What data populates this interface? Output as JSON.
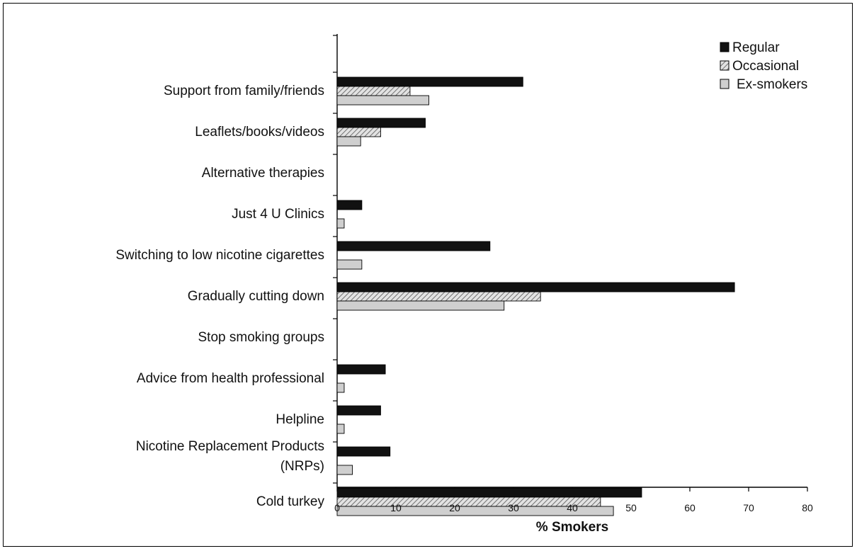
{
  "chart_data": {
    "type": "bar",
    "orientation": "horizontal",
    "title": "",
    "xlabel": "% Smokers",
    "ylabel": "",
    "xlim": [
      0,
      80
    ],
    "xticks": [
      0,
      10,
      20,
      30,
      40,
      50,
      60,
      70,
      80
    ],
    "grid": false,
    "legend_position": "top-right",
    "categories": [
      "Support from family/friends",
      "Leaflets/books/videos",
      "Alternative therapies",
      "Just 4 U Clinics",
      "Switching to low nicotine cigarettes",
      "Gradually cutting down",
      "Stop smoking groups",
      "Advice from health professional",
      "Helpline",
      "Nicotine Replacement Products (NRPs)",
      "Cold turkey"
    ],
    "series": [
      {
        "name": "Regular",
        "color": "#111111",
        "pattern": "solid",
        "values": [
          31.6,
          15.0,
          0,
          4.2,
          26.0,
          67.6,
          0,
          8.2,
          7.4,
          9.0,
          51.8
        ]
      },
      {
        "name": "Occasional",
        "color": "#d8d8d8",
        "pattern": "hatch",
        "values": [
          12.4,
          7.4,
          0,
          0,
          0,
          34.6,
          0,
          0,
          0,
          0,
          44.8
        ]
      },
      {
        "name": "Ex-smokers",
        "color": "#cfcfcf",
        "pattern": "solid",
        "values": [
          15.6,
          4.0,
          0,
          1.2,
          4.2,
          28.4,
          0,
          1.2,
          1.2,
          2.6,
          47.0
        ]
      }
    ]
  }
}
